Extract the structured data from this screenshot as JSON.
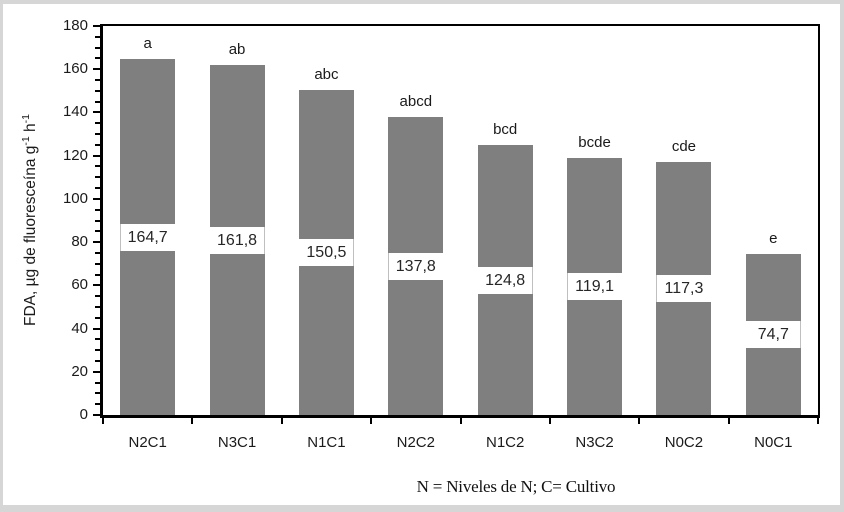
{
  "figure": {
    "caption": "N = Niveles de N; C= Cultivo",
    "ylabel_main": "FDA, µg de fluoresceína g",
    "ylabel_sup1": "-1",
    "ylabel_mid": " h",
    "ylabel_sup2": "-1"
  },
  "chart_data": {
    "type": "bar",
    "title": "",
    "categories": [
      "N2C1",
      "N3C1",
      "N1C1",
      "N2C2",
      "N1C2",
      "N3C2",
      "N0C2",
      "N0C1"
    ],
    "values": [
      164.7,
      161.8,
      150.5,
      137.8,
      124.8,
      119.1,
      117.3,
      74.7
    ],
    "value_labels": [
      "164,7",
      "161,8",
      "150,5",
      "137,8",
      "124,8",
      "119,1",
      "117,3",
      "74,7"
    ],
    "significance_letters": [
      "a",
      "ab",
      "abc",
      "abcd",
      "bcd",
      "bcde",
      "cde",
      "e"
    ],
    "xlabel": "N = Niveles de N; C= Cultivo",
    "ylabel": "FDA, µg de fluoresceína g⁻¹ h⁻¹",
    "ylim": [
      0,
      180
    ],
    "ytick_step": 20,
    "yminor_step": 5,
    "yticks": [
      0,
      20,
      40,
      60,
      80,
      100,
      120,
      140,
      160,
      180
    ],
    "grid": false,
    "legend": false,
    "bar_color": "#7f7f7f",
    "label_box_color": "#ffffff",
    "axis_color": "#000000",
    "text_color": "#262626",
    "frame_color": "#d6d6d6"
  }
}
